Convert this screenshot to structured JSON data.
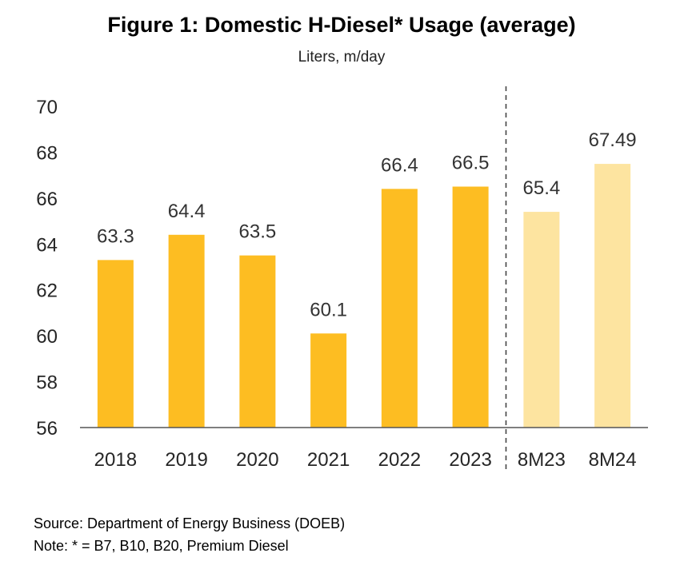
{
  "chart_data": {
    "type": "bar",
    "title": "Figure 1: Domestic H-Diesel* Usage (average)",
    "subtitle": "Liters, m/day",
    "categories": [
      "2018",
      "2019",
      "2020",
      "2021",
      "2022",
      "2023",
      "8M23",
      "8M24"
    ],
    "values": [
      63.3,
      64.4,
      63.5,
      60.1,
      66.4,
      66.5,
      65.4,
      67.49
    ],
    "data_labels": [
      "63.3",
      "64.4",
      "63.5",
      "60.1",
      "66.4",
      "66.5",
      "65.4",
      "67.49"
    ],
    "ylim": [
      56,
      70
    ],
    "yticks": [
      "56",
      "58",
      "60",
      "62",
      "64",
      "66",
      "68",
      "70"
    ],
    "ytick_values": [
      56,
      58,
      60,
      62,
      64,
      66,
      68,
      70
    ],
    "grid": false,
    "legend": "none",
    "colors": {
      "annual": "#FDBD22",
      "partial_year": "#FDE4A0",
      "axis": "#555555",
      "divider": "#444444"
    },
    "bar_colors": [
      "#FDBD22",
      "#FDBD22",
      "#FDBD22",
      "#FDBD22",
      "#FDBD22",
      "#FDBD22",
      "#FDE4A0",
      "#FDE4A0"
    ],
    "divider_after_category": "2023"
  },
  "footer": {
    "source": "Source: Department of Energy Business (DOEB)",
    "note": "Note: * = B7, B10, B20, Premium Diesel"
  }
}
